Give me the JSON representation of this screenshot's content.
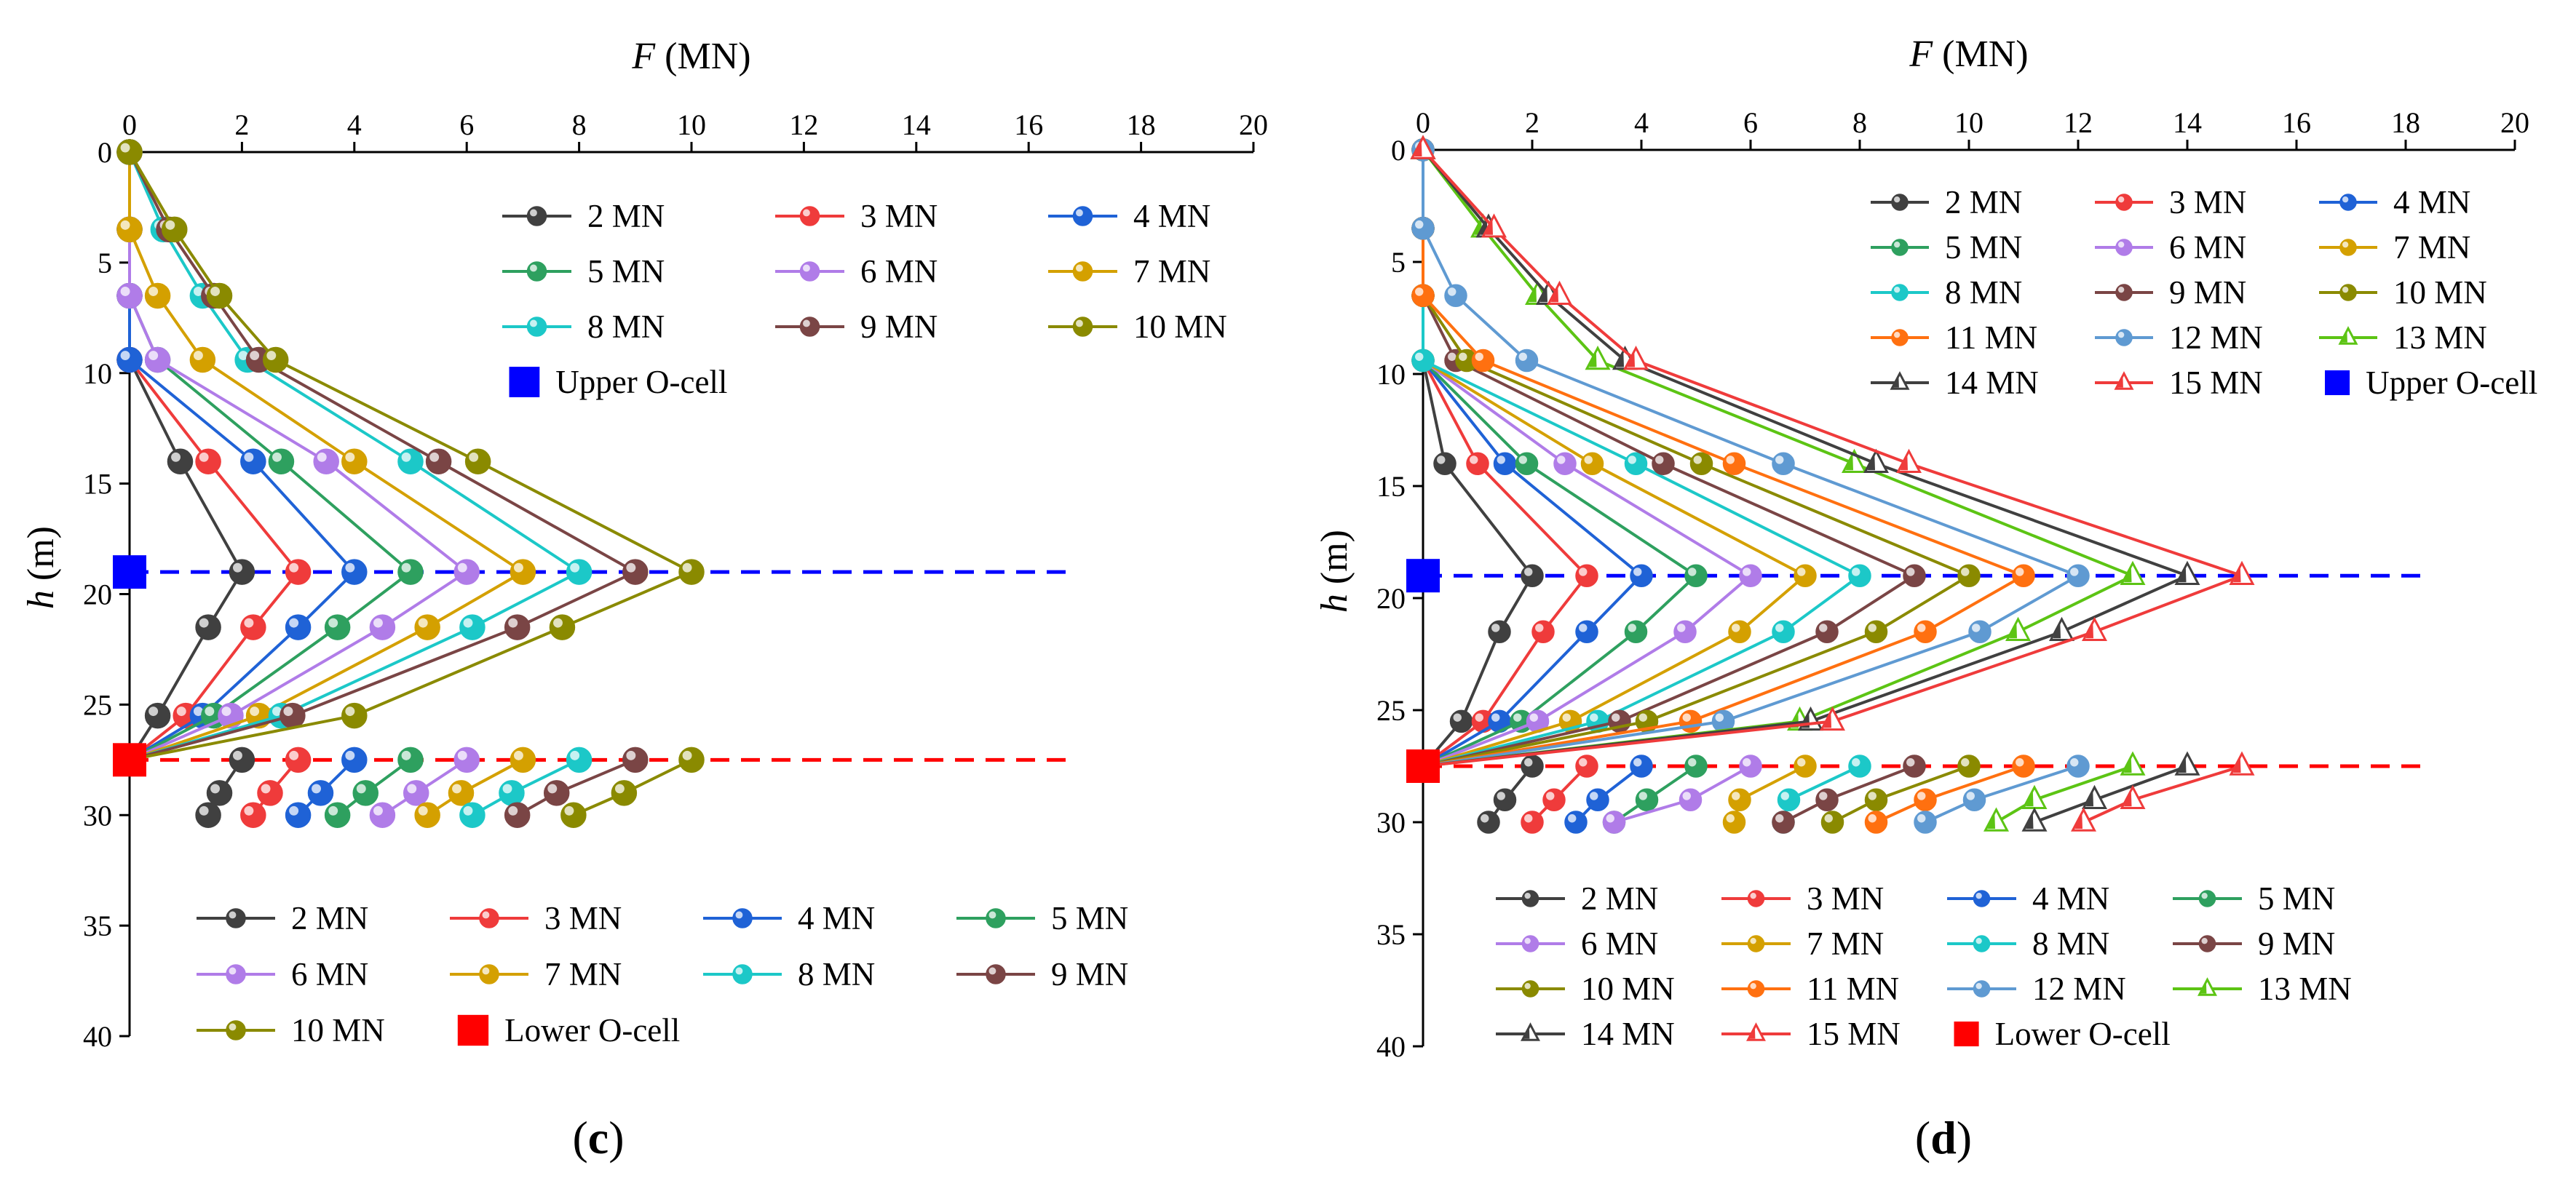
{
  "chart_data": [
    {
      "type": "line",
      "panel_label": "c",
      "xlabel": "F (MN)",
      "ylabel": "h (m)",
      "xlim": [
        0,
        20
      ],
      "ylim": [
        40,
        0
      ],
      "x_ticks": [
        0,
        2,
        4,
        6,
        8,
        10,
        12,
        14,
        16,
        18,
        20
      ],
      "y_ticks": [
        0,
        5,
        10,
        15,
        20,
        25,
        30,
        35,
        40
      ],
      "x_axis_position": "top",
      "grid": false,
      "depths": [
        0,
        3.5,
        6.5,
        9.4,
        14,
        19,
        21.5,
        25.5,
        27.5,
        29,
        30
      ],
      "upper_ocell": {
        "label": "Upper O-cell",
        "depth": 19,
        "color": "#0000ff"
      },
      "lower_ocell": {
        "label": "Lower O-cell",
        "depth": 27.5,
        "color": "#ff0000"
      },
      "series": [
        {
          "name": "2 MN",
          "color": "#404040",
          "up": [
            0,
            0,
            0,
            0,
            0.9,
            2.0,
            1.4,
            0.5,
            0
          ],
          "down": [
            2.0,
            1.6,
            1.4
          ]
        },
        {
          "name": "3 MN",
          "color": "#ef3b3b",
          "up": [
            0,
            0,
            0,
            0,
            1.4,
            3.0,
            2.2,
            1.0,
            0
          ],
          "down": [
            3.0,
            2.5,
            2.2
          ]
        },
        {
          "name": "4 MN",
          "color": "#1f62d6",
          "up": [
            0,
            0,
            0,
            0,
            2.2,
            4.0,
            3.0,
            1.3,
            0
          ],
          "down": [
            4.0,
            3.4,
            3.0
          ]
        },
        {
          "name": "5 MN",
          "color": "#2ea05f",
          "up": [
            0,
            0,
            0,
            0.5,
            2.7,
            5.0,
            3.7,
            1.5,
            0
          ],
          "down": [
            5.0,
            4.2,
            3.7
          ]
        },
        {
          "name": "6 MN",
          "color": "#b07ce8",
          "up": [
            0,
            0,
            0,
            0.5,
            3.5,
            6.0,
            4.5,
            1.8,
            0
          ],
          "down": [
            6.0,
            5.1,
            4.5
          ]
        },
        {
          "name": "7 MN",
          "color": "#d4a000",
          "up": [
            0,
            0,
            0.5,
            1.3,
            4.0,
            7.0,
            5.3,
            2.3,
            0
          ],
          "down": [
            7.0,
            5.9,
            5.3
          ]
        },
        {
          "name": "8 MN",
          "color": "#1cc8c8",
          "up": [
            0,
            0.6,
            1.3,
            2.1,
            5.0,
            8.0,
            6.1,
            2.7,
            0
          ],
          "down": [
            8.0,
            6.8,
            6.1
          ]
        },
        {
          "name": "9 MN",
          "color": "#7a4545",
          "up": [
            0,
            0.7,
            1.5,
            2.3,
            5.5,
            9.0,
            6.9,
            2.9,
            0
          ],
          "down": [
            9.0,
            7.6,
            6.9
          ]
        },
        {
          "name": "10 MN",
          "color": "#8a8a00",
          "up": [
            0,
            0.8,
            1.6,
            2.6,
            6.2,
            10.0,
            7.7,
            4.0,
            0
          ],
          "down": [
            10.0,
            8.8,
            7.9
          ]
        }
      ],
      "legend_upper": {
        "position": "top-right",
        "entries": [
          "2 MN",
          "3 MN",
          "4 MN",
          "5 MN",
          "6 MN",
          "7 MN",
          "8 MN",
          "9 MN",
          "10 MN",
          "Upper O-cell"
        ]
      },
      "legend_lower": {
        "position": "bottom",
        "entries": [
          "2 MN",
          "3 MN",
          "4 MN",
          "5 MN",
          "6 MN",
          "7 MN",
          "8 MN",
          "9 MN",
          "10 MN",
          "Lower O-cell"
        ]
      }
    },
    {
      "type": "line",
      "panel_label": "d",
      "xlabel": "F (MN)",
      "ylabel": "h (m)",
      "xlim": [
        0,
        20
      ],
      "ylim": [
        40,
        0
      ],
      "x_ticks": [
        0,
        2,
        4,
        6,
        8,
        10,
        12,
        14,
        16,
        18,
        20
      ],
      "y_ticks": [
        0,
        5,
        10,
        15,
        20,
        25,
        30,
        35,
        40
      ],
      "x_axis_position": "top",
      "grid": false,
      "depths": [
        0,
        3.5,
        6.5,
        9.4,
        14,
        19,
        21.5,
        25.5,
        27.5,
        29,
        30
      ],
      "upper_ocell": {
        "label": "Upper O-cell",
        "depth": 19,
        "color": "#0000ff"
      },
      "lower_ocell": {
        "label": "Lower O-cell",
        "depth": 27.5,
        "color": "#ff0000"
      },
      "series": [
        {
          "name": "2 MN",
          "color": "#404040",
          "marker": "circle",
          "up": [
            0,
            0,
            0,
            0,
            0.4,
            2.0,
            1.4,
            0.7,
            0
          ],
          "down": [
            2.0,
            1.5,
            1.2
          ]
        },
        {
          "name": "3 MN",
          "color": "#ef3b3b",
          "marker": "circle",
          "up": [
            0,
            0,
            0,
            0,
            1.0,
            3.0,
            2.2,
            1.1,
            0
          ],
          "down": [
            3.0,
            2.4,
            2.0
          ]
        },
        {
          "name": "4 MN",
          "color": "#1f62d6",
          "marker": "circle",
          "up": [
            0,
            0,
            0,
            0,
            1.5,
            4.0,
            3.0,
            1.4,
            0
          ],
          "down": [
            4.0,
            3.2,
            2.8
          ]
        },
        {
          "name": "5 MN",
          "color": "#2ea05f",
          "marker": "circle",
          "up": [
            0,
            0,
            0,
            0,
            1.9,
            5.0,
            3.9,
            1.8,
            0
          ],
          "down": [
            5.0,
            4.1,
            3.5
          ]
        },
        {
          "name": "6 MN",
          "color": "#b07ce8",
          "marker": "circle",
          "up": [
            0,
            0,
            0,
            0,
            2.6,
            6.0,
            4.8,
            2.1,
            0
          ],
          "down": [
            6.0,
            4.9,
            3.5
          ]
        },
        {
          "name": "7 MN",
          "color": "#d4a000",
          "marker": "circle",
          "up": [
            0,
            0,
            0,
            0,
            3.1,
            7.0,
            5.8,
            2.7,
            0
          ],
          "down": [
            7.0,
            5.8,
            5.7
          ]
        },
        {
          "name": "8 MN",
          "color": "#1cc8c8",
          "marker": "circle",
          "up": [
            0,
            0,
            0,
            0,
            3.9,
            8.0,
            6.6,
            3.2,
            0
          ],
          "down": [
            8.0,
            6.7,
            6.6
          ]
        },
        {
          "name": "9 MN",
          "color": "#7a4545",
          "marker": "circle",
          "up": [
            0,
            0,
            0,
            0.6,
            4.4,
            9.0,
            7.4,
            3.6,
            0
          ],
          "down": [
            9.0,
            7.4,
            6.6
          ]
        },
        {
          "name": "10 MN",
          "color": "#8a8a00",
          "marker": "circle",
          "up": [
            0,
            0,
            0,
            0.8,
            5.1,
            10.0,
            8.3,
            4.1,
            0
          ],
          "down": [
            10.0,
            8.3,
            7.5
          ]
        },
        {
          "name": "11 MN",
          "color": "#ff7010",
          "marker": "circle",
          "up": [
            0,
            0,
            0,
            1.1,
            5.7,
            11.0,
            9.2,
            4.9,
            0
          ],
          "down": [
            11.0,
            9.2,
            8.3
          ]
        },
        {
          "name": "12 MN",
          "color": "#5f9ad2",
          "marker": "circle",
          "up": [
            0,
            0,
            0.6,
            1.9,
            6.6,
            12.0,
            10.2,
            5.5,
            0
          ],
          "down": [
            12.0,
            10.1,
            9.2
          ]
        },
        {
          "name": "13 MN",
          "color": "#5cc414",
          "marker": "triangle",
          "up": [
            0,
            1.1,
            2.1,
            3.2,
            7.9,
            13.0,
            10.9,
            6.9,
            0
          ],
          "down": [
            13.0,
            11.2,
            10.5
          ]
        },
        {
          "name": "14 MN",
          "color": "#404040",
          "marker": "triangle",
          "up": [
            0,
            1.2,
            2.3,
            3.7,
            8.3,
            14.0,
            11.7,
            7.1,
            0
          ],
          "down": [
            14.0,
            12.3,
            11.2
          ]
        },
        {
          "name": "15 MN",
          "color": "#ef3b3b",
          "marker": "triangle",
          "up": [
            0,
            1.3,
            2.5,
            3.9,
            8.9,
            15.0,
            12.3,
            7.5,
            0
          ],
          "down": [
            15.0,
            13.0,
            12.1
          ]
        }
      ],
      "legend_upper": {
        "position": "top-right",
        "entries": [
          "2 MN",
          "3 MN",
          "4 MN",
          "5 MN",
          "6 MN",
          "7 MN",
          "8 MN",
          "9 MN",
          "10 MN",
          "11 MN",
          "12 MN",
          "13 MN",
          "14 MN",
          "15 MN",
          "Upper O-cell"
        ]
      },
      "legend_lower": {
        "position": "bottom",
        "entries": [
          "2 MN",
          "3 MN",
          "4 MN",
          "5 MN",
          "6 MN",
          "7 MN",
          "8 MN",
          "9 MN",
          "10 MN",
          "11 MN",
          "12 MN",
          "13 MN",
          "14 MN",
          "15 MN",
          "Lower O-cell"
        ]
      }
    }
  ]
}
